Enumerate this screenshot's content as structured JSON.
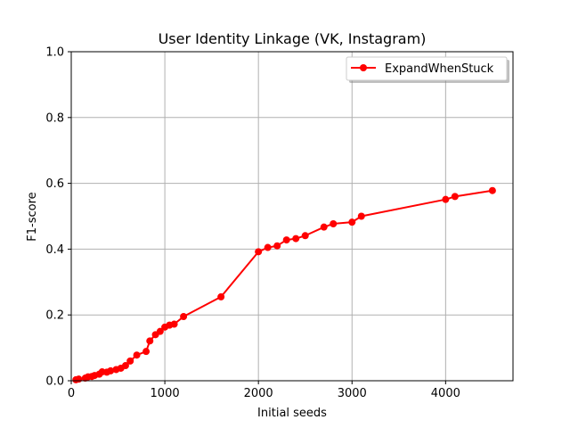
{
  "chart_data": {
    "type": "line",
    "title": "User Identity Linkage (VK, Instagram)",
    "xlabel": "Initial seeds",
    "ylabel": "F1-score",
    "xlim": [
      0,
      4720
    ],
    "ylim": [
      0,
      1.0
    ],
    "xticks": [
      0,
      1000,
      2000,
      3000,
      4000
    ],
    "xtick_labels": [
      "0",
      "1000",
      "2000",
      "3000",
      "4000"
    ],
    "yticks": [
      0.0,
      0.2,
      0.4,
      0.6,
      0.8,
      1.0
    ],
    "ytick_labels": [
      "0.0",
      "0.2",
      "0.4",
      "0.6",
      "0.8",
      "1.0"
    ],
    "grid": true,
    "legend_position": "top-right",
    "series": [
      {
        "name": "ExpandWhenStuck",
        "color": "#ff0000",
        "marker": "circle",
        "points": [
          [
            50,
            0.003
          ],
          [
            80,
            0.005
          ],
          [
            150,
            0.008
          ],
          [
            180,
            0.012
          ],
          [
            220,
            0.013
          ],
          [
            250,
            0.016
          ],
          [
            300,
            0.02
          ],
          [
            330,
            0.027
          ],
          [
            380,
            0.026
          ],
          [
            420,
            0.03
          ],
          [
            480,
            0.034
          ],
          [
            530,
            0.038
          ],
          [
            580,
            0.046
          ],
          [
            630,
            0.06
          ],
          [
            700,
            0.078
          ],
          [
            800,
            0.089
          ],
          [
            840,
            0.121
          ],
          [
            900,
            0.14
          ],
          [
            950,
            0.15
          ],
          [
            1000,
            0.163
          ],
          [
            1050,
            0.169
          ],
          [
            1100,
            0.172
          ],
          [
            1200,
            0.195
          ],
          [
            1600,
            0.255
          ],
          [
            2000,
            0.392
          ],
          [
            2100,
            0.405
          ],
          [
            2200,
            0.41
          ],
          [
            2300,
            0.428
          ],
          [
            2400,
            0.432
          ],
          [
            2500,
            0.441
          ],
          [
            2700,
            0.467
          ],
          [
            2800,
            0.477
          ],
          [
            3000,
            0.482
          ],
          [
            3100,
            0.5
          ],
          [
            4000,
            0.551
          ],
          [
            4100,
            0.56
          ],
          [
            4500,
            0.578
          ]
        ]
      }
    ]
  }
}
